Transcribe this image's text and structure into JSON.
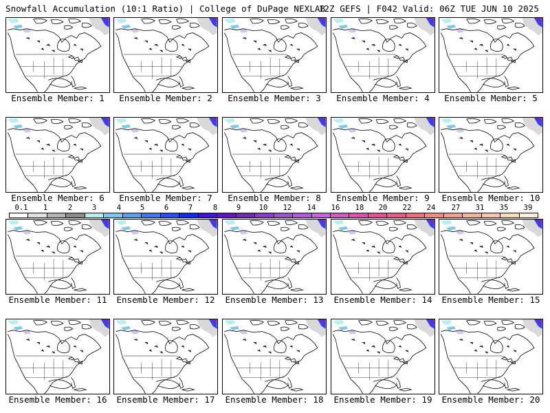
{
  "header": {
    "left": "Snowfall Accumulation (10:1 Ratio) | College of DuPage NEXLAB",
    "right": "12Z GEFS | F042 Valid: 06Z TUE JUN 10 2025"
  },
  "panels": [
    {
      "caption": "Ensemble Member: 1"
    },
    {
      "caption": "Ensemble Member: 2"
    },
    {
      "caption": "Ensemble Member: 3"
    },
    {
      "caption": "Ensemble Member: 4"
    },
    {
      "caption": "Ensemble Member: 5"
    },
    {
      "caption": "Ensemble Member: 6"
    },
    {
      "caption": "Ensemble Member: 7"
    },
    {
      "caption": "Ensemble Member: 8"
    },
    {
      "caption": "Ensemble Member: 9"
    },
    {
      "caption": "Ensemble Member: 10"
    },
    {
      "caption": "Ensemble Member: 11"
    },
    {
      "caption": "Ensemble Member: 12"
    },
    {
      "caption": "Ensemble Member: 13"
    },
    {
      "caption": "Ensemble Member: 14"
    },
    {
      "caption": "Ensemble Member: 15"
    },
    {
      "caption": "Ensemble Member: 16"
    },
    {
      "caption": "Ensemble Member: 17"
    },
    {
      "caption": "Ensemble Member: 18"
    },
    {
      "caption": "Ensemble Member: 19"
    },
    {
      "caption": "Ensemble Member: 20"
    }
  ],
  "colorbar": {
    "labels": [
      "0.1",
      "1",
      "2",
      "3",
      "4",
      "5",
      "6",
      "7",
      "8",
      "9",
      "10",
      "12",
      "14",
      "16",
      "18",
      "20",
      "22",
      "24",
      "27",
      "31",
      "35",
      "39"
    ],
    "colors": [
      "#ffffff",
      "#e0e0e0",
      "#b4b4b4",
      "#8c8c8c",
      "#b4f0f0",
      "#78c8f0",
      "#5aa0f0",
      "#3c78f0",
      "#2850f0",
      "#1428f0",
      "#3c14dc",
      "#6414c8",
      "#7828b4",
      "#8c3cc8",
      "#a050d2",
      "#b45adc",
      "#c864dc",
      "#d25ac8",
      "#dc50b4",
      "#e6509b",
      "#eb5a87",
      "#f06e78",
      "#f08c82",
      "#f0a08c",
      "#f5b49b",
      "#f5c8aa",
      "#fadcbe",
      "#fff0dc"
    ]
  }
}
